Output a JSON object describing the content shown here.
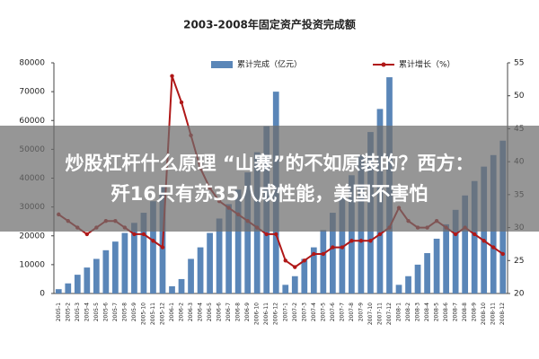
{
  "chart_data": {
    "type": "bar-line",
    "title": "2003-2008年固定资产投资完成额",
    "categories": [
      "2005-1",
      "2005-2",
      "2005-3",
      "2005-4",
      "2005-5",
      "2005-6",
      "2005-7",
      "2005-8",
      "2005-9",
      "2005-10",
      "2005-11",
      "2005-12",
      "2006-1",
      "2006-2",
      "2006-3",
      "2006-4",
      "2006-5",
      "2006-6",
      "2006-7",
      "2006-8",
      "2006-9",
      "2006-10",
      "2006-11",
      "2006-12",
      "2007-1",
      "2007-2",
      "2007-3",
      "2007-4",
      "2007-5",
      "2007-6",
      "2007-7",
      "2007-8",
      "2007-9",
      "2007-10",
      "2007-11",
      "2007-12",
      "2008-1",
      "2008-2",
      "2008-3",
      "2008-4",
      "2008-5",
      "2008-6",
      "2008-7",
      "2008-8",
      "2008-9",
      "2008-10",
      "2008-11",
      "2008-12"
    ],
    "series": [
      {
        "name": "累计完成（亿元）",
        "color": "#5a86b8",
        "kind": "bar",
        "values": [
          1500,
          3500,
          6500,
          9000,
          12000,
          15000,
          18000,
          21000,
          24500,
          28000,
          32000,
          37000,
          2500,
          5000,
          12000,
          16000,
          21000,
          26000,
          31000,
          36000,
          42000,
          49000,
          58000,
          70000,
          3000,
          6000,
          12000,
          16000,
          22000,
          28000,
          34000,
          41000,
          48000,
          56000,
          64000,
          75000,
          3000,
          6000,
          10000,
          14000,
          19000,
          24000,
          29000,
          34000,
          39000,
          44000,
          48000,
          53000
        ]
      },
      {
        "name": "累计增长（%）",
        "color": "#b01818",
        "kind": "line",
        "axis": "y2",
        "values": [
          32,
          31,
          30,
          29,
          30,
          31,
          31,
          30,
          29,
          29,
          28,
          27,
          53,
          49,
          44,
          39,
          36,
          34,
          33,
          32,
          31,
          30,
          29,
          29,
          25,
          24,
          25,
          26,
          26,
          27,
          27,
          28,
          28,
          28,
          29,
          30,
          33,
          31,
          30,
          30,
          31,
          30,
          29,
          30,
          29,
          28,
          27,
          26
        ]
      }
    ],
    "ylim": [
      0,
      80000
    ],
    "yticks": [
      0,
      10000,
      20000,
      30000,
      40000,
      50000,
      60000,
      70000,
      80000
    ],
    "y2lim": [
      20,
      55
    ],
    "y2ticks": [
      20,
      25,
      30,
      35,
      40,
      45,
      50,
      55
    ]
  },
  "overlay": {
    "lines": [
      "炒股杠杆什么原理 “山寨”的不如原装的？西方：",
      "歼16只有苏35八成性能，美国不害怕"
    ]
  }
}
